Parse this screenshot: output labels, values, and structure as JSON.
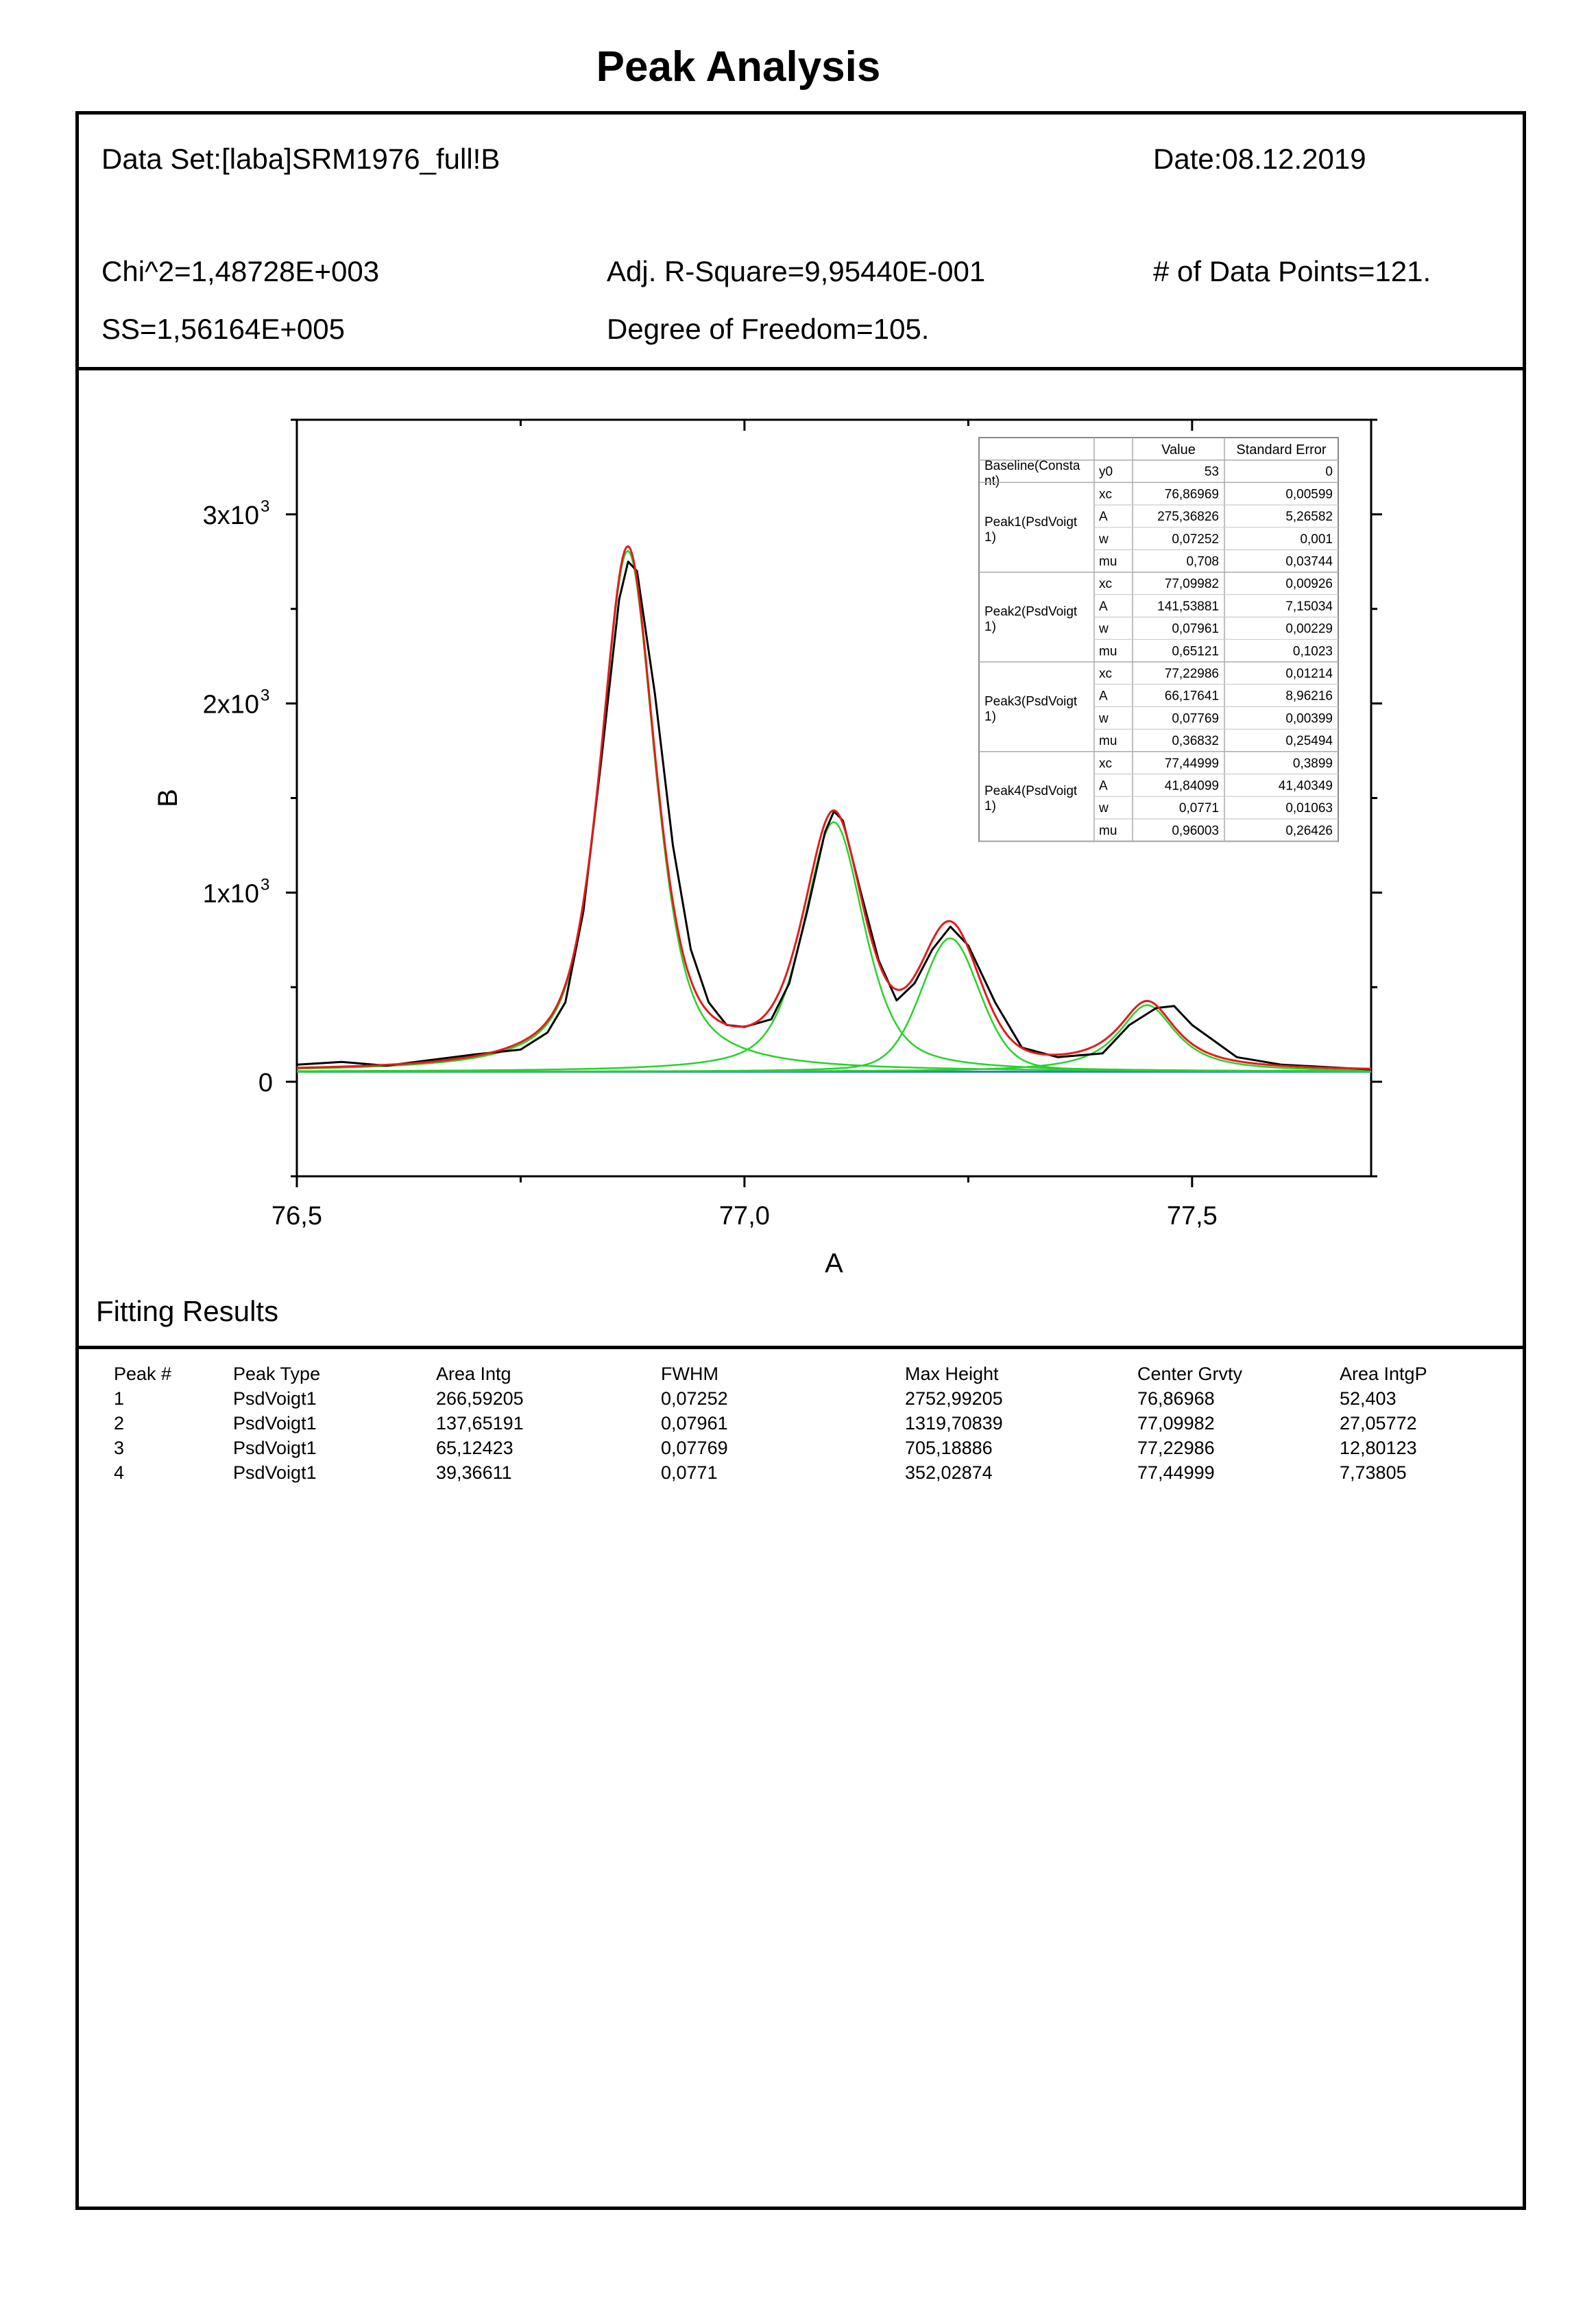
{
  "report": {
    "title": "Peak Analysis",
    "dataset": "Data Set:[laba]SRM1976_full!B",
    "date": "Date:08.12.2019",
    "chi2": "Chi^2=1,48728E+003",
    "adj_r2": "Adj. R-Square=9,95440E-001",
    "n_points": "# of Data Points=121.",
    "ss": "SS=1,56164E+005",
    "dof": "Degree of Freedom=105."
  },
  "fitting_results": {
    "label": "Fitting Results",
    "columns": [
      "Peak #",
      "Peak Type",
      "Area Intg",
      "FWHM",
      "Max Height",
      "Center Grvty",
      "Area IntgP"
    ],
    "rows": [
      [
        "1",
        "PsdVoigt1",
        "266,59205",
        "0,07252",
        "2752,99205",
        "76,86968",
        "52,403"
      ],
      [
        "2",
        "PsdVoigt1",
        "137,65191",
        "0,07961",
        "1319,70839",
        "77,09982",
        "27,05772"
      ],
      [
        "3",
        "PsdVoigt1",
        "65,12423",
        "0,07769",
        "705,18886",
        "77,22986",
        "12,80123"
      ],
      [
        "4",
        "PsdVoigt1",
        "39,36611",
        "0,0771",
        "352,02874",
        "77,44999",
        "7,73805"
      ]
    ]
  },
  "param_table": {
    "headers": [
      "",
      "",
      "Value",
      "Standard Error"
    ],
    "groups": [
      {
        "name": [
          "Baseline(Consta",
          "nt)"
        ],
        "rows": [
          [
            "y0",
            "53",
            "0"
          ]
        ]
      },
      {
        "name": [
          "Peak1(PsdVoigt",
          "1)"
        ],
        "rows": [
          [
            "xc",
            "76,86969",
            "0,00599"
          ],
          [
            "A",
            "275,36826",
            "5,26582"
          ],
          [
            "w",
            "0,07252",
            "0,001"
          ],
          [
            "mu",
            "0,708",
            "0,03744"
          ]
        ]
      },
      {
        "name": [
          "Peak2(PsdVoigt",
          "1)"
        ],
        "rows": [
          [
            "xc",
            "77,09982",
            "0,00926"
          ],
          [
            "A",
            "141,53881",
            "7,15034"
          ],
          [
            "w",
            "0,07961",
            "0,00229"
          ],
          [
            "mu",
            "0,65121",
            "0,1023"
          ]
        ]
      },
      {
        "name": [
          "Peak3(PsdVoigt",
          "1)"
        ],
        "rows": [
          [
            "xc",
            "77,22986",
            "0,01214"
          ],
          [
            "A",
            "66,17641",
            "8,96216"
          ],
          [
            "w",
            "0,07769",
            "0,00399"
          ],
          [
            "mu",
            "0,36832",
            "0,25494"
          ]
        ]
      },
      {
        "name": [
          "Peak4(PsdVoigt",
          "1)"
        ],
        "rows": [
          [
            "xc",
            "77,44999",
            "0,3899"
          ],
          [
            "A",
            "41,84099",
            "41,40349"
          ],
          [
            "w",
            "0,0771",
            "0,01063"
          ],
          [
            "mu",
            "0,96003",
            "0,26426"
          ]
        ]
      }
    ]
  },
  "chart_data": {
    "type": "line",
    "xlabel": "A",
    "ylabel": "B",
    "xlim": [
      76.5,
      77.7
    ],
    "ylim": [
      -500,
      3500
    ],
    "x_ticks": [
      76.5,
      77.0,
      77.5
    ],
    "x_tick_labels": [
      "76,5",
      "77,0",
      "77,5"
    ],
    "y_ticks": [
      0,
      1000,
      2000,
      3000
    ],
    "y_tick_labels": [
      "0",
      "1x10",
      "2x10",
      "3x10"
    ],
    "y_tick_exponents": [
      "",
      "3",
      "3",
      "3"
    ],
    "baseline": 53,
    "peaks": [
      {
        "name": "Peak1",
        "xc": 76.86969,
        "A": 275.36826,
        "w": 0.07252,
        "mu": 0.708
      },
      {
        "name": "Peak2",
        "xc": 77.09982,
        "A": 141.53881,
        "w": 0.07961,
        "mu": 0.65121
      },
      {
        "name": "Peak3",
        "xc": 77.22986,
        "A": 66.17641,
        "w": 0.07769,
        "mu": 0.36832
      },
      {
        "name": "Peak4",
        "xc": 77.44999,
        "A": 41.84099,
        "w": 0.0771,
        "mu": 0.96003
      }
    ],
    "data_series": {
      "x": [
        76.5,
        76.55,
        76.6,
        76.65,
        76.7,
        76.75,
        76.78,
        76.8,
        76.82,
        76.84,
        76.86,
        76.87,
        76.88,
        76.9,
        76.92,
        76.94,
        76.96,
        76.98,
        77.0,
        77.03,
        77.05,
        77.07,
        77.09,
        77.1,
        77.11,
        77.13,
        77.15,
        77.17,
        77.19,
        77.21,
        77.23,
        77.25,
        77.28,
        77.31,
        77.35,
        77.4,
        77.43,
        77.46,
        77.48,
        77.5,
        77.55,
        77.6,
        77.7
      ],
      "y": [
        90,
        105,
        85,
        115,
        145,
        170,
        260,
        420,
        900,
        1700,
        2550,
        2750,
        2700,
        2050,
        1250,
        700,
        420,
        300,
        290,
        330,
        520,
        900,
        1320,
        1430,
        1380,
        1000,
        640,
        430,
        520,
        700,
        820,
        720,
        420,
        180,
        130,
        150,
        300,
        390,
        400,
        300,
        130,
        90,
        65
      ]
    },
    "colors": {
      "data": "#000000",
      "fit": "#e41b1b",
      "peaks": "#28d22a",
      "baseline": "#2d7fd0"
    }
  }
}
